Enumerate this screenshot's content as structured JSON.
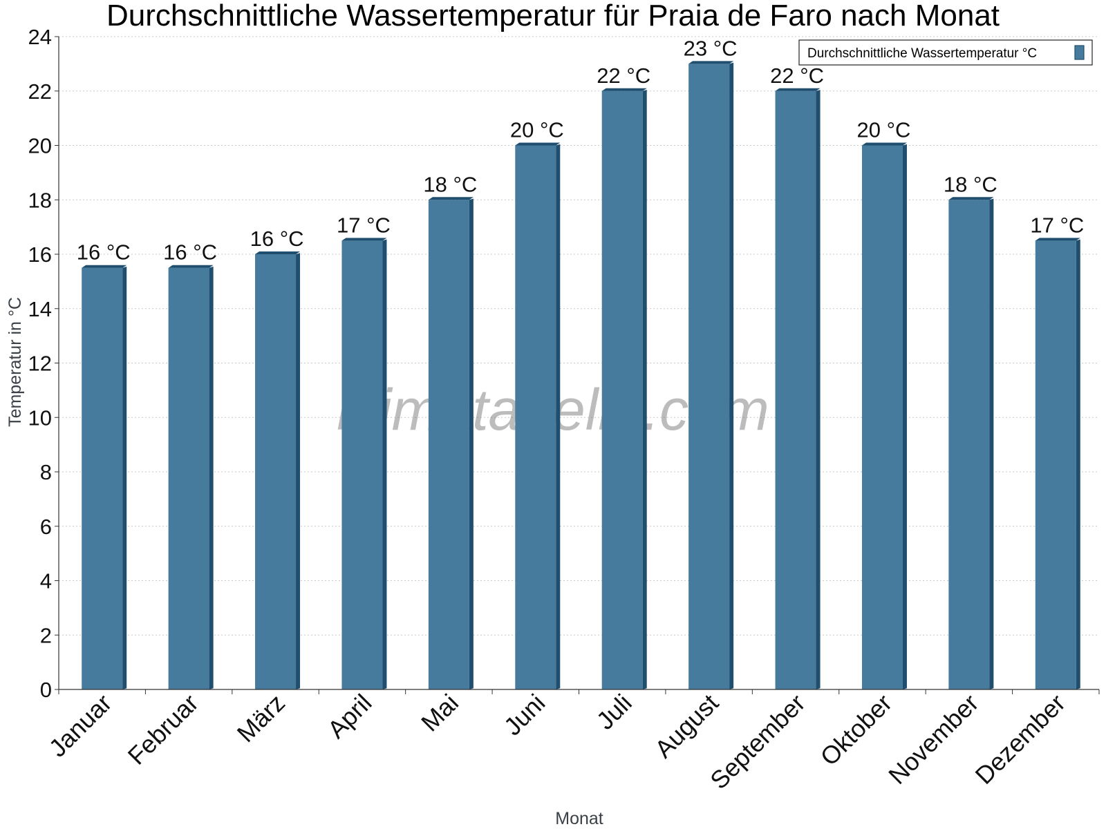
{
  "chart_data": {
    "type": "bar",
    "title": "Durchschnittliche Wassertemperatur für Praia de Faro nach Monat",
    "xlabel": "Monat",
    "ylabel": "Temperatur in °C",
    "ylim": [
      0,
      24
    ],
    "yticks": [
      0,
      2,
      4,
      6,
      8,
      10,
      12,
      14,
      16,
      18,
      20,
      22,
      24
    ],
    "grid": true,
    "legend_position": "top-right",
    "categories": [
      "Januar",
      "Februar",
      "März",
      "April",
      "Mai",
      "Juni",
      "Juli",
      "August",
      "September",
      "Oktober",
      "November",
      "Dezember"
    ],
    "series": [
      {
        "name": "Durchschnittliche Wassertemperatur °C",
        "values": [
          15.5,
          15.5,
          16.0,
          16.5,
          18.0,
          20.0,
          22.0,
          23.0,
          22.0,
          20.0,
          18.0,
          16.5
        ],
        "labels": [
          "16 °C",
          "16 °C",
          "16 °C",
          "17 °C",
          "18 °C",
          "20 °C",
          "22 °C",
          "23 °C",
          "22 °C",
          "20 °C",
          "18 °C",
          "17 °C"
        ]
      }
    ],
    "colors": {
      "bar": "#467b9d",
      "bar_side": "#1f4e6e",
      "bar_top": "#1f4e6e"
    },
    "watermark": "klimatabelle.com"
  }
}
